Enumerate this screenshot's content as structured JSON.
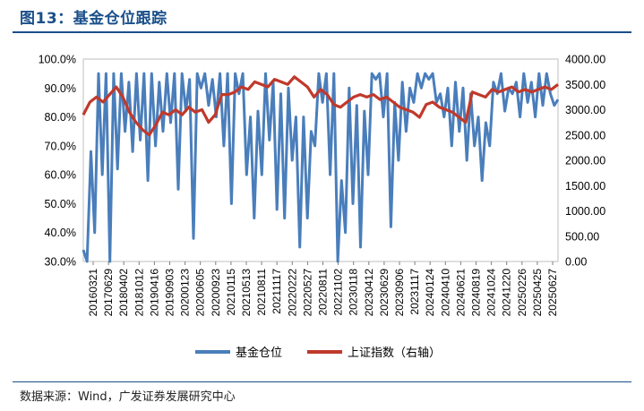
{
  "header": {
    "title": "图13：基金仓位跟踪"
  },
  "footer": {
    "source": "数据来源：Wind，广发证券发展研究中心"
  },
  "colors": {
    "fund_position": "#4a7ebb",
    "index": "#c0392b",
    "title": "#1a4f8a"
  },
  "chart_data": {
    "type": "line",
    "title": "",
    "left_axis": {
      "ticks": [
        "30.0%",
        "40.0%",
        "50.0%",
        "60.0%",
        "70.0%",
        "80.0%",
        "90.0%",
        "100.0%"
      ],
      "range": [
        30,
        100
      ],
      "unit": "%"
    },
    "right_axis": {
      "ticks": [
        "0.00",
        "500.00",
        "1000.00",
        "1500.00",
        "2000.00",
        "2500.00",
        "3000.00",
        "3500.00",
        "4000.00"
      ],
      "range": [
        0,
        4000
      ]
    },
    "x_ticks": [
      "20160321",
      "20170629",
      "20180402",
      "20181012",
      "20190416",
      "20190903",
      "20200123",
      "20200605",
      "20200923",
      "20210115",
      "20210513",
      "20210811",
      "20211117",
      "20220222",
      "20220527",
      "20220811",
      "20221102",
      "20230118",
      "20230412",
      "20230629",
      "20230906",
      "20231117",
      "20240124",
      "20240410",
      "20240621",
      "20240819",
      "20241024",
      "20241220",
      "20250226",
      "20250425",
      "20250627"
    ],
    "legend": {
      "position": "bottom",
      "entries": [
        "基金仓位",
        "上证指数（右轴）"
      ]
    },
    "series": [
      {
        "name": "基金仓位",
        "axis": "left",
        "values": [
          34,
          30,
          68,
          40,
          95,
          60,
          95,
          30,
          95,
          62,
          95,
          75,
          92,
          68,
          95,
          72,
          95,
          58,
          95,
          70,
          92,
          75,
          95,
          78,
          95,
          55,
          95,
          82,
          93,
          38,
          95,
          90,
          95,
          84,
          93,
          80,
          95,
          70,
          95,
          50,
          95,
          88,
          95,
          60,
          80,
          45,
          82,
          60,
          95,
          72,
          92,
          48,
          88,
          45,
          90,
          65,
          80,
          35,
          80,
          45,
          75,
          70,
          95,
          85,
          95,
          60,
          95,
          30,
          58,
          40,
          90,
          50,
          84,
          35,
          82,
          60,
          95,
          93,
          95,
          80,
          95,
          42,
          85,
          65,
          92,
          75,
          90,
          85,
          95,
          90,
          95,
          93,
          95,
          85,
          88,
          80,
          90,
          70,
          92,
          75,
          90,
          65,
          88,
          70,
          80,
          58,
          78,
          70,
          92,
          88,
          95,
          82,
          90,
          88,
          92,
          80,
          95,
          85,
          92,
          80,
          95,
          84,
          95,
          88,
          84,
          86
        ]
      },
      {
        "name": "上证指数（右轴）",
        "axis": "right",
        "values": [
          2900,
          3150,
          3250,
          3150,
          3300,
          3450,
          3250,
          2950,
          2750,
          2600,
          2500,
          2700,
          2950,
          2900,
          3000,
          2900,
          3050,
          2950,
          3000,
          2750,
          2900,
          3300,
          3300,
          3350,
          3450,
          3400,
          3550,
          3500,
          3450,
          3600,
          3550,
          3500,
          3650,
          3550,
          3450,
          3250,
          3400,
          3300,
          3100,
          3050,
          3150,
          3250,
          3300,
          3250,
          3300,
          3200,
          3250,
          3150,
          3050,
          3000,
          2950,
          2850,
          3100,
          3150,
          3050,
          3000,
          2950,
          2850,
          2750,
          3350,
          3300,
          3250,
          3400,
          3350,
          3400,
          3450,
          3350,
          3400,
          3350,
          3400,
          3450,
          3400,
          3500
        ]
      }
    ]
  }
}
